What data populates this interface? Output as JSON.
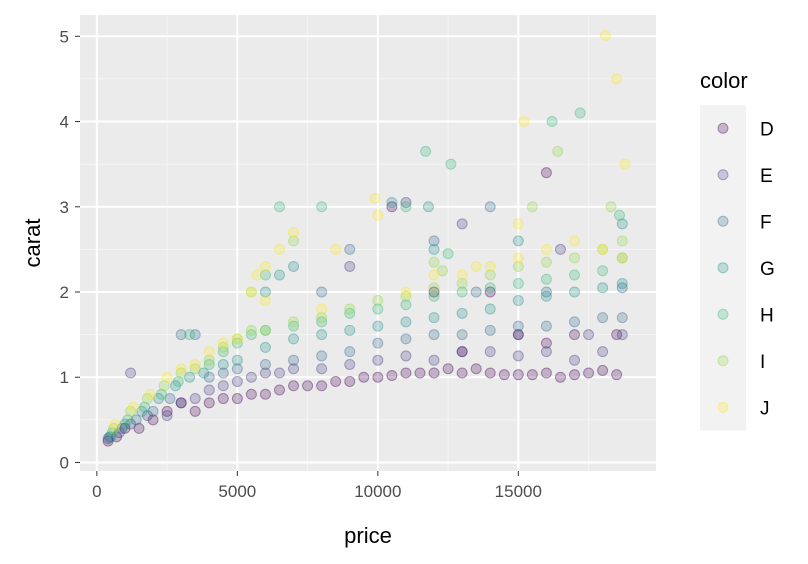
{
  "chart_data": {
    "type": "scatter",
    "xlabel": "price",
    "ylabel": "carat",
    "xlim": [
      -600,
      19900
    ],
    "ylim": [
      -0.1,
      5.25
    ],
    "x_ticks": [
      0,
      5000,
      10000,
      15000
    ],
    "x_tick_labels": [
      "0",
      "5000",
      "10000",
      "15000"
    ],
    "y_ticks": [
      0,
      1,
      2,
      3,
      4,
      5
    ],
    "y_tick_labels": [
      "0",
      "1",
      "2",
      "3",
      "4",
      "5"
    ],
    "grid": true,
    "point_alpha": 0.25,
    "legend": {
      "title": "color",
      "position": "right",
      "entries": [
        {
          "label": "D",
          "color": "#440154"
        },
        {
          "label": "E",
          "color": "#443A83"
        },
        {
          "label": "F",
          "color": "#31688E"
        },
        {
          "label": "G",
          "color": "#21908C"
        },
        {
          "label": "H",
          "color": "#35B779"
        },
        {
          "label": "I",
          "color": "#8FD744"
        },
        {
          "label": "J",
          "color": "#FDE725"
        }
      ]
    },
    "series": [
      {
        "name": "D",
        "points": [
          [
            400,
            0.25
          ],
          [
            700,
            0.3
          ],
          [
            1000,
            0.4
          ],
          [
            1500,
            0.4
          ],
          [
            2000,
            0.5
          ],
          [
            2500,
            0.6
          ],
          [
            3000,
            0.7
          ],
          [
            3500,
            0.6
          ],
          [
            4000,
            0.7
          ],
          [
            4500,
            0.75
          ],
          [
            5000,
            0.75
          ],
          [
            5500,
            0.8
          ],
          [
            6000,
            0.8
          ],
          [
            6500,
            0.85
          ],
          [
            7000,
            0.9
          ],
          [
            7500,
            0.9
          ],
          [
            8000,
            0.9
          ],
          [
            8500,
            0.95
          ],
          [
            9000,
            0.95
          ],
          [
            9500,
            1.0
          ],
          [
            10000,
            1.0
          ],
          [
            10500,
            1.02
          ],
          [
            11000,
            1.05
          ],
          [
            11500,
            1.05
          ],
          [
            12000,
            1.05
          ],
          [
            12500,
            1.1
          ],
          [
            13000,
            1.05
          ],
          [
            13500,
            1.1
          ],
          [
            14000,
            1.05
          ],
          [
            14500,
            1.03
          ],
          [
            15000,
            1.03
          ],
          [
            15500,
            1.03
          ],
          [
            16000,
            1.05
          ],
          [
            16500,
            1.0
          ],
          [
            17000,
            1.03
          ],
          [
            17500,
            1.05
          ],
          [
            18000,
            1.08
          ],
          [
            18500,
            1.03
          ],
          [
            16000,
            3.4
          ],
          [
            10500,
            3.0
          ],
          [
            12000,
            2.0
          ],
          [
            14000,
            2.0
          ],
          [
            15000,
            1.5
          ],
          [
            17000,
            1.5
          ],
          [
            18500,
            1.5
          ],
          [
            13000,
            1.3
          ],
          [
            16000,
            1.4
          ]
        ]
      },
      {
        "name": "E",
        "points": [
          [
            400,
            0.28
          ],
          [
            800,
            0.35
          ],
          [
            1200,
            0.45
          ],
          [
            1200,
            1.05
          ],
          [
            1800,
            0.55
          ],
          [
            2500,
            0.55
          ],
          [
            3000,
            0.7
          ],
          [
            3500,
            0.75
          ],
          [
            4000,
            0.85
          ],
          [
            4500,
            0.9
          ],
          [
            5000,
            0.95
          ],
          [
            5500,
            1.0
          ],
          [
            6000,
            1.05
          ],
          [
            6500,
            1.05
          ],
          [
            7000,
            1.1
          ],
          [
            8000,
            1.1
          ],
          [
            9000,
            1.15
          ],
          [
            10000,
            1.2
          ],
          [
            11000,
            1.25
          ],
          [
            12000,
            1.2
          ],
          [
            13000,
            1.3
          ],
          [
            14000,
            1.3
          ],
          [
            15000,
            1.25
          ],
          [
            16000,
            1.3
          ],
          [
            17000,
            1.2
          ],
          [
            18000,
            1.3
          ],
          [
            18700,
            1.5
          ],
          [
            11000,
            3.05
          ],
          [
            13000,
            2.8
          ],
          [
            16500,
            2.5
          ],
          [
            9000,
            2.3
          ],
          [
            15000,
            1.5
          ],
          [
            17500,
            1.5
          ]
        ]
      },
      {
        "name": "F",
        "points": [
          [
            450,
            0.3
          ],
          [
            900,
            0.4
          ],
          [
            1400,
            0.5
          ],
          [
            2000,
            0.6
          ],
          [
            2600,
            0.75
          ],
          [
            3000,
            1.5
          ],
          [
            3500,
            1.5
          ],
          [
            4000,
            1.0
          ],
          [
            4500,
            1.05
          ],
          [
            5000,
            1.1
          ],
          [
            6000,
            1.15
          ],
          [
            7000,
            1.2
          ],
          [
            8000,
            1.25
          ],
          [
            9000,
            1.3
          ],
          [
            10000,
            1.4
          ],
          [
            11000,
            1.45
          ],
          [
            12000,
            1.5
          ],
          [
            13000,
            1.5
          ],
          [
            14000,
            1.55
          ],
          [
            15000,
            1.6
          ],
          [
            16000,
            1.6
          ],
          [
            17000,
            1.65
          ],
          [
            18000,
            1.7
          ],
          [
            18700,
            1.7
          ],
          [
            18700,
            2.05
          ],
          [
            9000,
            2.5
          ],
          [
            12000,
            2.6
          ],
          [
            14000,
            3.0
          ],
          [
            13500,
            2.0
          ],
          [
            16000,
            2.0
          ],
          [
            8000,
            2.0
          ]
        ]
      },
      {
        "name": "G",
        "points": [
          [
            500,
            0.3
          ],
          [
            1000,
            0.45
          ],
          [
            1600,
            0.6
          ],
          [
            2200,
            0.75
          ],
          [
            2800,
            0.9
          ],
          [
            3300,
            1.0
          ],
          [
            3800,
            1.05
          ],
          [
            4500,
            1.15
          ],
          [
            5000,
            1.2
          ],
          [
            6000,
            1.35
          ],
          [
            7000,
            1.45
          ],
          [
            8000,
            1.5
          ],
          [
            9000,
            1.55
          ],
          [
            10000,
            1.6
          ],
          [
            11000,
            1.65
          ],
          [
            12000,
            1.7
          ],
          [
            13000,
            1.75
          ],
          [
            14000,
            1.8
          ],
          [
            15000,
            1.9
          ],
          [
            16000,
            1.95
          ],
          [
            17000,
            2.0
          ],
          [
            18000,
            2.05
          ],
          [
            18700,
            2.1
          ],
          [
            6000,
            2.0
          ],
          [
            6500,
            2.2
          ],
          [
            7000,
            2.3
          ],
          [
            12000,
            2.5
          ],
          [
            15000,
            2.6
          ],
          [
            18700,
            2.8
          ],
          [
            10500,
            3.05
          ],
          [
            11800,
            3.0
          ]
        ]
      },
      {
        "name": "H",
        "points": [
          [
            550,
            0.35
          ],
          [
            1100,
            0.5
          ],
          [
            1700,
            0.65
          ],
          [
            2300,
            0.8
          ],
          [
            2900,
            0.95
          ],
          [
            3300,
            1.5
          ],
          [
            4000,
            1.15
          ],
          [
            4500,
            1.3
          ],
          [
            5000,
            1.4
          ],
          [
            5500,
            1.5
          ],
          [
            6000,
            1.55
          ],
          [
            7000,
            1.6
          ],
          [
            8000,
            1.65
          ],
          [
            9000,
            1.75
          ],
          [
            10000,
            1.8
          ],
          [
            11000,
            1.85
          ],
          [
            12000,
            1.95
          ],
          [
            13000,
            2.0
          ],
          [
            14000,
            2.05
          ],
          [
            15000,
            2.1
          ],
          [
            16000,
            2.15
          ],
          [
            17000,
            2.2
          ],
          [
            18000,
            2.25
          ],
          [
            18700,
            2.4
          ],
          [
            6500,
            3.0
          ],
          [
            8000,
            3.0
          ],
          [
            11000,
            3.0
          ],
          [
            11700,
            3.65
          ],
          [
            12600,
            3.5
          ],
          [
            17200,
            4.1
          ],
          [
            16200,
            4.0
          ],
          [
            18600,
            2.9
          ],
          [
            12500,
            2.45
          ],
          [
            6000,
            2.2
          ]
        ]
      },
      {
        "name": "I",
        "points": [
          [
            600,
            0.4
          ],
          [
            1200,
            0.6
          ],
          [
            1800,
            0.75
          ],
          [
            2400,
            0.9
          ],
          [
            3000,
            1.05
          ],
          [
            3500,
            1.1
          ],
          [
            4000,
            1.2
          ],
          [
            4500,
            1.35
          ],
          [
            5000,
            1.45
          ],
          [
            5500,
            1.55
          ],
          [
            6000,
            1.55
          ],
          [
            7000,
            1.65
          ],
          [
            8000,
            1.7
          ],
          [
            9000,
            1.8
          ],
          [
            10000,
            1.9
          ],
          [
            11000,
            1.95
          ],
          [
            12000,
            2.05
          ],
          [
            13000,
            2.1
          ],
          [
            14000,
            2.2
          ],
          [
            15000,
            2.3
          ],
          [
            16000,
            2.35
          ],
          [
            17000,
            2.4
          ],
          [
            18000,
            2.5
          ],
          [
            18700,
            2.6
          ],
          [
            12000,
            2.35
          ],
          [
            12300,
            2.25
          ],
          [
            15500,
            3.0
          ],
          [
            16400,
            3.65
          ],
          [
            18300,
            3.0
          ],
          [
            5500,
            2.0
          ],
          [
            7000,
            2.6
          ]
        ]
      },
      {
        "name": "J",
        "points": [
          [
            650,
            0.45
          ],
          [
            1300,
            0.65
          ],
          [
            1900,
            0.8
          ],
          [
            2500,
            1.0
          ],
          [
            3000,
            1.1
          ],
          [
            3500,
            1.15
          ],
          [
            4000,
            1.3
          ],
          [
            4500,
            1.4
          ],
          [
            5000,
            1.45
          ],
          [
            5500,
            2.0
          ],
          [
            5700,
            2.2
          ],
          [
            6000,
            2.3
          ],
          [
            6500,
            2.5
          ],
          [
            7000,
            2.7
          ],
          [
            8500,
            2.5
          ],
          [
            10000,
            2.9
          ],
          [
            11000,
            2.0
          ],
          [
            12000,
            2.2
          ],
          [
            13000,
            2.2
          ],
          [
            14000,
            2.3
          ],
          [
            15000,
            2.4
          ],
          [
            16000,
            2.5
          ],
          [
            17000,
            2.6
          ],
          [
            18000,
            2.5
          ],
          [
            18700,
            2.4
          ],
          [
            9900,
            3.1
          ],
          [
            15200,
            4.0
          ],
          [
            18100,
            5.01
          ],
          [
            18500,
            4.5
          ],
          [
            18800,
            3.5
          ],
          [
            15000,
            2.8
          ],
          [
            13500,
            2.3
          ],
          [
            8000,
            1.8
          ],
          [
            6000,
            1.9
          ]
        ]
      }
    ]
  }
}
